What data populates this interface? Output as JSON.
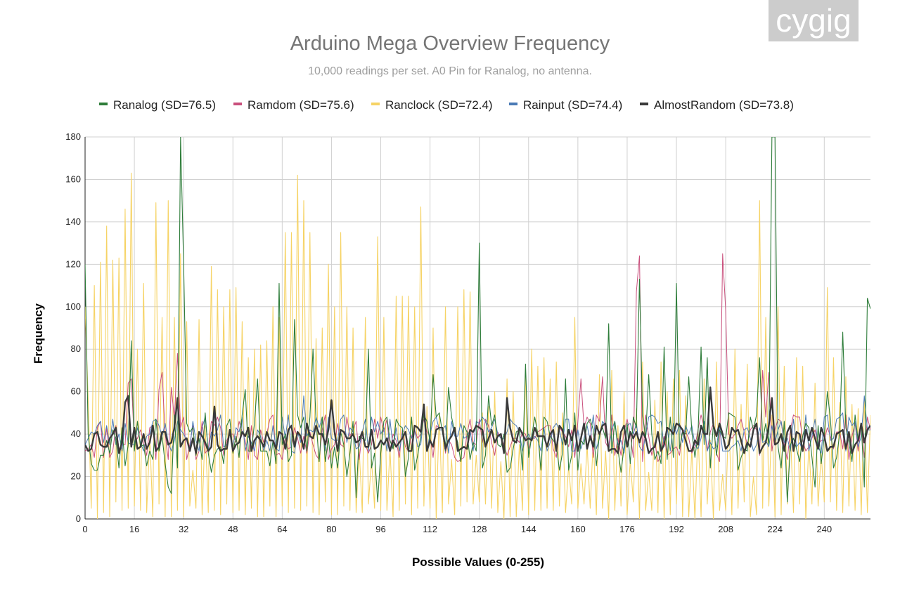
{
  "watermark": {
    "text": "cygig",
    "bg_color": "#cccccc"
  },
  "chart_data": {
    "type": "line",
    "title": "Arduino Mega Overview Frequency",
    "subtitle": "10,000 readings per set. A0 Pin for Ranalog, no antenna.",
    "xlabel": "Possible Values (0-255)",
    "ylabel": "Frequency",
    "xlim": [
      0,
      255
    ],
    "ylim": [
      0,
      180
    ],
    "x_ticks": [
      0,
      16,
      32,
      48,
      64,
      80,
      96,
      112,
      128,
      144,
      160,
      176,
      192,
      208,
      224,
      240
    ],
    "y_ticks": [
      0,
      20,
      40,
      60,
      80,
      100,
      120,
      140,
      160,
      180
    ],
    "grid": true,
    "legend_position": "top",
    "series": [
      {
        "name": "Ranclock (SD=72.4)",
        "color": "#f6d365",
        "width": 1.1,
        "peaks": [
          [
            0,
            100
          ],
          [
            3,
            110
          ],
          [
            5,
            121
          ],
          [
            7,
            138
          ],
          [
            9,
            122
          ],
          [
            11,
            123
          ],
          [
            13,
            146
          ],
          [
            15,
            163
          ],
          [
            17,
            80
          ],
          [
            19,
            111
          ],
          [
            23,
            149
          ],
          [
            25,
            95
          ],
          [
            27,
            150
          ],
          [
            29,
            95
          ],
          [
            31,
            125
          ],
          [
            33,
            93
          ],
          [
            37,
            94
          ],
          [
            41,
            119
          ],
          [
            43,
            108
          ],
          [
            45,
            100
          ],
          [
            47,
            108
          ],
          [
            49,
            109
          ],
          [
            51,
            93
          ],
          [
            53,
            76
          ],
          [
            55,
            80
          ],
          [
            57,
            82
          ],
          [
            59,
            84
          ],
          [
            61,
            100
          ],
          [
            63,
            95
          ],
          [
            65,
            135
          ],
          [
            67,
            135
          ],
          [
            69,
            162
          ],
          [
            71,
            150
          ],
          [
            73,
            135
          ],
          [
            75,
            85
          ],
          [
            77,
            90
          ],
          [
            79,
            120
          ],
          [
            81,
            100
          ],
          [
            83,
            135
          ],
          [
            85,
            100
          ],
          [
            87,
            90
          ],
          [
            91,
            95
          ],
          [
            95,
            133
          ],
          [
            97,
            95
          ],
          [
            101,
            105
          ],
          [
            103,
            105
          ],
          [
            105,
            105
          ],
          [
            107,
            100
          ],
          [
            109,
            147
          ],
          [
            113,
            90
          ],
          [
            117,
            100
          ],
          [
            121,
            100
          ],
          [
            123,
            108
          ],
          [
            125,
            107
          ],
          [
            129,
            50
          ],
          [
            133,
            60
          ],
          [
            137,
            66
          ],
          [
            139,
            60
          ],
          [
            143,
            70
          ],
          [
            145,
            80
          ],
          [
            147,
            72
          ],
          [
            149,
            76
          ],
          [
            151,
            66
          ],
          [
            153,
            74
          ],
          [
            159,
            95
          ],
          [
            167,
            68
          ],
          [
            171,
            70
          ],
          [
            175,
            60
          ],
          [
            181,
            74
          ],
          [
            187,
            74
          ],
          [
            191,
            66
          ],
          [
            193,
            70
          ],
          [
            201,
            66
          ],
          [
            205,
            74
          ],
          [
            211,
            80
          ],
          [
            215,
            73
          ],
          [
            219,
            150
          ],
          [
            221,
            95
          ],
          [
            225,
            100
          ],
          [
            227,
            72
          ],
          [
            231,
            76
          ],
          [
            233,
            72
          ],
          [
            237,
            64
          ],
          [
            241,
            109
          ],
          [
            243,
            76
          ],
          [
            247,
            67
          ],
          [
            251,
            52
          ],
          [
            253,
            57
          ]
        ]
      },
      {
        "name": "Ramdom (SD=75.6)",
        "color": "#c94f7c",
        "width": 1.0,
        "base": 38,
        "amp": 11,
        "seed": 11,
        "spikes": [
          [
            14,
            64
          ],
          [
            15,
            66
          ],
          [
            24,
            61
          ],
          [
            25,
            69
          ],
          [
            28,
            62
          ],
          [
            30,
            78
          ],
          [
            50,
            46
          ],
          [
            60,
            47
          ],
          [
            161,
            66
          ],
          [
            168,
            67
          ],
          [
            179,
            107
          ],
          [
            180,
            124
          ],
          [
            207,
            125
          ],
          [
            208,
            98
          ],
          [
            220,
            70
          ],
          [
            222,
            69
          ]
        ]
      },
      {
        "name": "Rainput (SD=74.4)",
        "color": "#4a7ab5",
        "width": 1.0,
        "base": 40,
        "amp": 9,
        "seed": 23,
        "spikes": [
          [
            71,
            58
          ],
          [
            110,
            50
          ],
          [
            246,
            50
          ],
          [
            253,
            58
          ]
        ]
      },
      {
        "name": "Ranalog (SD=76.5)",
        "color": "#2e7d3a",
        "width": 1.1,
        "base": 36,
        "amp": 14,
        "seed": 37,
        "spikes": [
          [
            0,
            120
          ],
          [
            1,
            40
          ],
          [
            15,
            84
          ],
          [
            27,
            15
          ],
          [
            28,
            12
          ],
          [
            31,
            180
          ],
          [
            32,
            120
          ],
          [
            52,
            61
          ],
          [
            56,
            66
          ],
          [
            63,
            111
          ],
          [
            68,
            94
          ],
          [
            74,
            80
          ],
          [
            85,
            20
          ],
          [
            88,
            10
          ],
          [
            92,
            80
          ],
          [
            95,
            8
          ],
          [
            104,
            20
          ],
          [
            113,
            68
          ],
          [
            118,
            62
          ],
          [
            128,
            130
          ],
          [
            131,
            58
          ],
          [
            143,
            73
          ],
          [
            156,
            66
          ],
          [
            170,
            92
          ],
          [
            174,
            22
          ],
          [
            180,
            113
          ],
          [
            183,
            68
          ],
          [
            188,
            81
          ],
          [
            192,
            111
          ],
          [
            196,
            67
          ],
          [
            200,
            81
          ],
          [
            202,
            76
          ],
          [
            219,
            76
          ],
          [
            223,
            180
          ],
          [
            224,
            180
          ],
          [
            228,
            8
          ],
          [
            237,
            15
          ],
          [
            241,
            60
          ],
          [
            246,
            88
          ],
          [
            253,
            15
          ],
          [
            254,
            104
          ],
          [
            255,
            99
          ]
        ]
      },
      {
        "name": "AlmostRandom (SD=73.8)",
        "color": "#3a3a3a",
        "width": 2.4,
        "base": 38,
        "amp": 7,
        "seed": 53,
        "spikes": [
          [
            13,
            55
          ],
          [
            14,
            58
          ],
          [
            30,
            57
          ],
          [
            42,
            53
          ],
          [
            80,
            56
          ],
          [
            110,
            54
          ],
          [
            137,
            57
          ],
          [
            203,
            62
          ],
          [
            223,
            57
          ]
        ]
      }
    ],
    "legend_order": [
      "Ranalog (SD=76.5)",
      "Ramdom (SD=75.6)",
      "Ranclock (SD=72.4)",
      "Rainput (SD=74.4)",
      "AlmostRandom (SD=73.8)"
    ]
  }
}
